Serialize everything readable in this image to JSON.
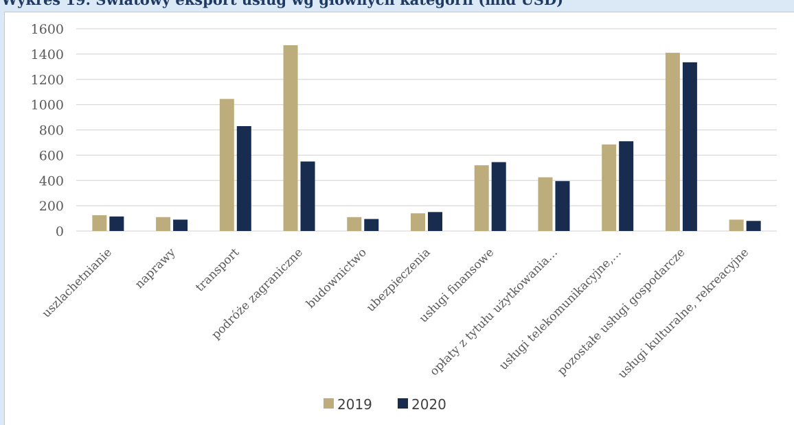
{
  "title": "Wykres 19. Światowy eksport usług wg głównych kategorii (mld USD)",
  "colors": {
    "series_2019": "#bdad7d",
    "series_2020": "#172c4f",
    "grid": "#d9d9d9",
    "axis_text": "#595959"
  },
  "chart_data": {
    "type": "bar",
    "title": "Wykres 19. Światowy eksport usług wg głównych kategorii (mld USD)",
    "xlabel": "",
    "ylabel": "",
    "ylim": [
      0,
      1600
    ],
    "yticks": [
      0,
      200,
      400,
      600,
      800,
      1000,
      1200,
      1400,
      1600
    ],
    "grid": true,
    "legend_position": "bottom",
    "categories": [
      "uszlachetnianie",
      "naprawy",
      "transport",
      "podróże zagraniczne",
      "budownictwo",
      "ubezpieczenia",
      "usługi finansowe",
      "opłaty z tytułu użytkowania…",
      "usługi telekomunikacyjne,…",
      "pozostałe usługi gospodarcze",
      "usługi kulturalne, rekreacyjne"
    ],
    "series": [
      {
        "name": "2019",
        "color": "#bdad7d",
        "values": [
          125,
          110,
          1045,
          1470,
          110,
          140,
          520,
          425,
          685,
          1410,
          90
        ]
      },
      {
        "name": "2020",
        "color": "#172c4f",
        "values": [
          115,
          90,
          830,
          550,
          95,
          150,
          545,
          395,
          710,
          1335,
          80
        ]
      }
    ]
  }
}
